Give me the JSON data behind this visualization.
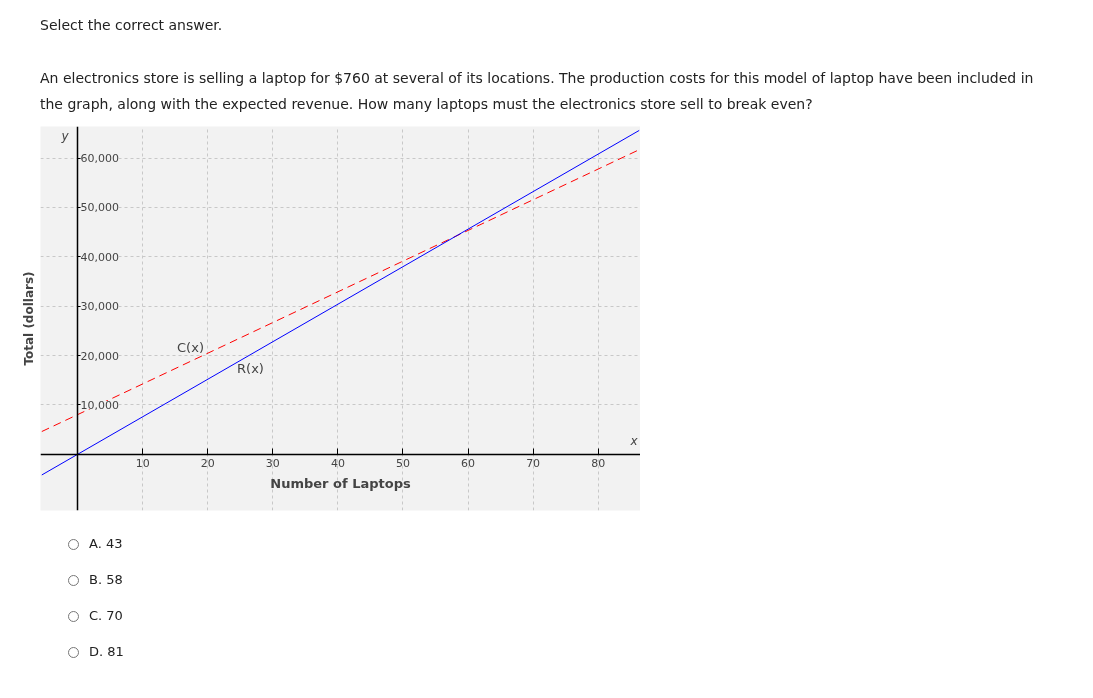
{
  "chart_data": {
    "type": "line",
    "title": "Select the correct answer.",
    "subtitle": "An electronics store is selling a laptop for $760 at several of its locations. The production costs for this model of laptop have been included in the graph, along with the expected revenue. How many laptops must the electronics store sell to break even?",
    "xlabel": "Number of Laptops",
    "ylabel": "Total (dollars)",
    "series": [
      {
        "name": "C(x)",
        "color": "#ff0000",
        "line_style": "dashed",
        "values": [
          4600,
          61700
        ]
      },
      {
        "name": "R(x)",
        "color": "#0000ff",
        "line_style": "solid",
        "values": [
          -4200,
          65600
        ]
      }
    ],
    "x": [
      -5.5,
      86.3
    ],
    "xlim": [
      -5.7,
      86.5
    ],
    "ylim": [
      -11400,
      66400
    ],
    "xticks": [
      10,
      20,
      30,
      40,
      50,
      60,
      70,
      80
    ],
    "yticks": [
      {
        "value": 10000,
        "label": "10,000"
      },
      {
        "value": 20000,
        "label": "20,000"
      },
      {
        "value": 30000,
        "label": "30,000"
      },
      {
        "value": 40000,
        "label": "40,000"
      },
      {
        "value": 50000,
        "label": "50,000"
      },
      {
        "value": 60000,
        "label": "60,000"
      }
    ],
    "grid": true,
    "annotations": [
      "x",
      "y",
      "A.  43",
      "B.  58",
      "C.  70",
      "D.  81"
    ]
  }
}
